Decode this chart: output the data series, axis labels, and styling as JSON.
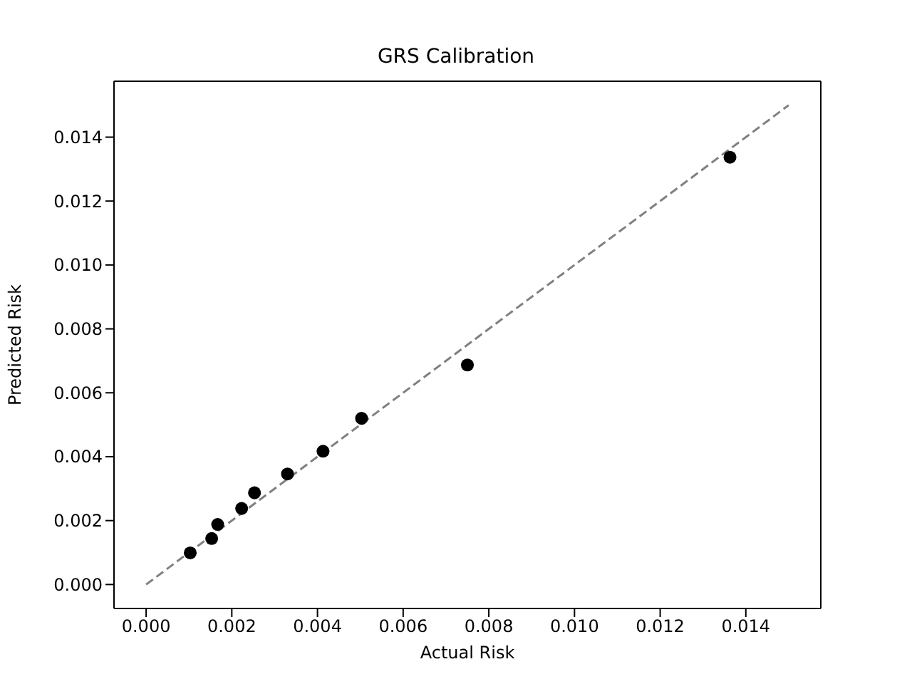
{
  "chart_data": {
    "type": "scatter",
    "title": "GRS Calibration",
    "xlabel": "Actual Risk",
    "ylabel": "Predicted Risk",
    "xlim": [
      -0.00075,
      0.01575
    ],
    "ylim": [
      -0.00075,
      0.01575
    ],
    "xticks": [
      {
        "value": 0,
        "label": "0.000"
      },
      {
        "value": 0.002,
        "label": "0.002"
      },
      {
        "value": 0.004,
        "label": "0.004"
      },
      {
        "value": 0.006,
        "label": "0.006"
      },
      {
        "value": 0.008,
        "label": "0.008"
      },
      {
        "value": 0.01,
        "label": "0.010"
      },
      {
        "value": 0.012,
        "label": "0.012"
      },
      {
        "value": 0.014,
        "label": "0.014"
      }
    ],
    "yticks": [
      {
        "value": 0,
        "label": "0.000"
      },
      {
        "value": 0.002,
        "label": "0.002"
      },
      {
        "value": 0.004,
        "label": "0.004"
      },
      {
        "value": 0.006,
        "label": "0.006"
      },
      {
        "value": 0.008,
        "label": "0.008"
      },
      {
        "value": 0.01,
        "label": "0.010"
      },
      {
        "value": 0.012,
        "label": "0.012"
      },
      {
        "value": 0.014,
        "label": "0.014"
      }
    ],
    "grid": false,
    "legend": false,
    "series": [
      {
        "color": "#000000",
        "marker": "circle",
        "x": [
          0.00103,
          0.00153,
          0.00167,
          0.00223,
          0.00253,
          0.0033,
          0.00413,
          0.00503,
          0.0075,
          0.01363
        ],
        "values": [
          0.00099,
          0.00144,
          0.00188,
          0.00238,
          0.00287,
          0.00346,
          0.00417,
          0.0052,
          0.00687,
          0.01337
        ]
      },
      {
        "type": "line",
        "color": "#808080",
        "marker": "none",
        "line_style": "dashed",
        "x": [
          0,
          0.015
        ],
        "values": [
          0,
          0.015
        ]
      }
    ]
  }
}
